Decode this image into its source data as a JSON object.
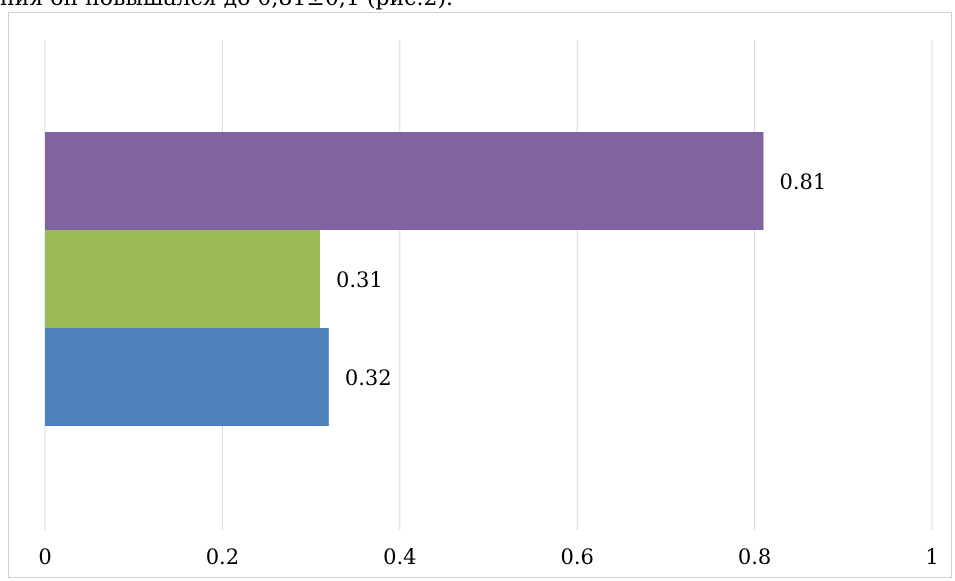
{
  "document": {
    "clipped_text": "ния он повышался до 0,81±0,1 (рис.2)."
  },
  "chart_data": {
    "type": "bar",
    "orientation": "horizontal",
    "categories": [
      "",
      "",
      ""
    ],
    "values": [
      0.32,
      0.31,
      0.81
    ],
    "data_labels": [
      "0.32",
      "0.31",
      "0.81"
    ],
    "colors": [
      "#4f81bd",
      "#9bbb59",
      "#8064a2"
    ],
    "title": "",
    "xlabel": "",
    "ylabel": "",
    "xlim": [
      0,
      1
    ],
    "x_ticks": [
      0,
      0.2,
      0.4,
      0.6,
      0.8,
      1
    ],
    "x_tick_labels": [
      "0",
      "0.2",
      "0.4",
      "0.6",
      "0.8",
      "1"
    ],
    "grid": "vertical",
    "legend": "none"
  }
}
